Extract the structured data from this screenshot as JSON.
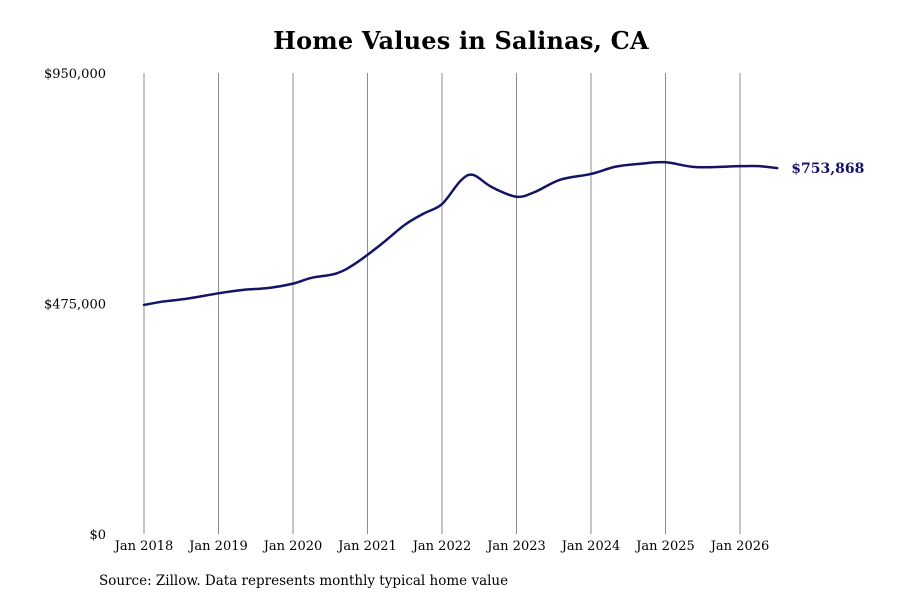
{
  "chart_data": {
    "type": "line",
    "title": "Home Values in Salinas, CA",
    "xlabel": "",
    "ylabel": "",
    "source_note": "Source: Zillow. Data represents monthly typical home value",
    "y_ticks": [
      {
        "value": 0,
        "label": "$0"
      },
      {
        "value": 475000,
        "label": "$475,000"
      },
      {
        "value": 950000,
        "label": "$950,000"
      }
    ],
    "x_ticks": [
      {
        "value": "2018-01",
        "label": "Jan 2018"
      },
      {
        "value": "2019-01",
        "label": "Jan 2019"
      },
      {
        "value": "2020-01",
        "label": "Jan 2020"
      },
      {
        "value": "2021-01",
        "label": "Jan 2021"
      },
      {
        "value": "2022-01",
        "label": "Jan 2022"
      },
      {
        "value": "2023-01",
        "label": "Jan 2023"
      },
      {
        "value": "2024-01",
        "label": "Jan 2024"
      },
      {
        "value": "2025-01",
        "label": "Jan 2025"
      },
      {
        "value": "2026-01",
        "label": "Jan 2026"
      }
    ],
    "xlim": [
      "2018-01",
      "2026-06"
    ],
    "ylim": [
      0,
      950000
    ],
    "grid": "vertical",
    "line_color": "#141466",
    "end_label": "$753,868",
    "series": [
      {
        "points": [
          [
            "2018-01",
            472000
          ],
          [
            "2018-04",
            479000
          ],
          [
            "2018-08",
            485000
          ],
          [
            "2019-01",
            496000
          ],
          [
            "2019-05",
            503000
          ],
          [
            "2019-09",
            507000
          ],
          [
            "2020-01",
            516000
          ],
          [
            "2020-04",
            528000
          ],
          [
            "2020-08",
            537000
          ],
          [
            "2020-11",
            557000
          ],
          [
            "2021-03",
            595000
          ],
          [
            "2021-07",
            637000
          ],
          [
            "2021-10",
            660000
          ],
          [
            "2022-01",
            680000
          ],
          [
            "2022-04",
            728000
          ],
          [
            "2022-06",
            740000
          ],
          [
            "2022-09",
            715000
          ],
          [
            "2023-01",
            695000
          ],
          [
            "2023-04",
            705000
          ],
          [
            "2023-08",
            730000
          ],
          [
            "2024-01",
            742000
          ],
          [
            "2024-05",
            757000
          ],
          [
            "2024-09",
            763000
          ],
          [
            "2025-01",
            766000
          ],
          [
            "2025-06",
            756000
          ],
          [
            "2026-01",
            758000
          ],
          [
            "2026-04",
            758000
          ],
          [
            "2026-07",
            754000
          ]
        ]
      }
    ]
  }
}
